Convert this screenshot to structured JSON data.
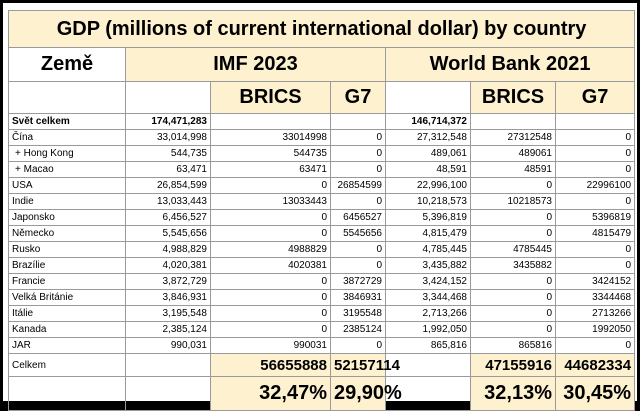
{
  "title": "GDP (millions of current international dollar) by country",
  "headers": {
    "country": "Země",
    "imf": "IMF 2023",
    "wb": "World Bank 2021",
    "brics": "BRICS",
    "g7": "G7"
  },
  "rows": [
    {
      "country": "Svět celkem",
      "imf": "174,471,283",
      "imf_brics": "",
      "imf_g7": "",
      "wb": "146,714,372",
      "wb_brics": "",
      "wb_g7": ""
    },
    {
      "country": "Čína",
      "imf": "33,014,998",
      "imf_brics": "33014998",
      "imf_g7": "0",
      "wb": "27,312,548",
      "wb_brics": "27312548",
      "wb_g7": "0"
    },
    {
      "country": "+ Hong Kong",
      "imf": "544,735",
      "imf_brics": "544735",
      "imf_g7": "0",
      "wb": "489,061",
      "wb_brics": "489061",
      "wb_g7": "0"
    },
    {
      "country": "+ Macao",
      "imf": "63,471",
      "imf_brics": "63471",
      "imf_g7": "0",
      "wb": "48,591",
      "wb_brics": "48591",
      "wb_g7": "0"
    },
    {
      "country": "USA",
      "imf": "26,854,599",
      "imf_brics": "0",
      "imf_g7": "26854599",
      "wb": "22,996,100",
      "wb_brics": "0",
      "wb_g7": "22996100"
    },
    {
      "country": "Indie",
      "imf": "13,033,443",
      "imf_brics": "13033443",
      "imf_g7": "0",
      "wb": "10,218,573",
      "wb_brics": "10218573",
      "wb_g7": "0"
    },
    {
      "country": "Japonsko",
      "imf": "6,456,527",
      "imf_brics": "0",
      "imf_g7": "6456527",
      "wb": "5,396,819",
      "wb_brics": "0",
      "wb_g7": "5396819"
    },
    {
      "country": "Německo",
      "imf": "5,545,656",
      "imf_brics": "0",
      "imf_g7": "5545656",
      "wb": "4,815,479",
      "wb_brics": "0",
      "wb_g7": "4815479"
    },
    {
      "country": "Rusko",
      "imf": "4,988,829",
      "imf_brics": "4988829",
      "imf_g7": "0",
      "wb": "4,785,445",
      "wb_brics": "4785445",
      "wb_g7": "0"
    },
    {
      "country": "Brazílie",
      "imf": "4,020,381",
      "imf_brics": "4020381",
      "imf_g7": "0",
      "wb": "3,435,882",
      "wb_brics": "3435882",
      "wb_g7": "0"
    },
    {
      "country": "Francie",
      "imf": "3,872,729",
      "imf_brics": "0",
      "imf_g7": "3872729",
      "wb": "3,424,152",
      "wb_brics": "0",
      "wb_g7": "3424152"
    },
    {
      "country": "Velká Británie",
      "imf": "3,846,931",
      "imf_brics": "0",
      "imf_g7": "3846931",
      "wb": "3,344,468",
      "wb_brics": "0",
      "wb_g7": "3344468"
    },
    {
      "country": "Itálie",
      "imf": "3,195,548",
      "imf_brics": "0",
      "imf_g7": "3195548",
      "wb": "2,713,266",
      "wb_brics": "0",
      "wb_g7": "2713266"
    },
    {
      "country": "Kanada",
      "imf": "2,385,124",
      "imf_brics": "0",
      "imf_g7": "2385124",
      "wb": "1,992,050",
      "wb_brics": "0",
      "wb_g7": "1992050"
    },
    {
      "country": "JAR",
      "imf": "990,031",
      "imf_brics": "990031",
      "imf_g7": "0",
      "wb": "865,816",
      "wb_brics": "865816",
      "wb_g7": "0"
    }
  ],
  "total": {
    "label": "Celkem",
    "imf_brics": "56655888",
    "imf_g7": "52157114",
    "wb_brics": "47155916",
    "wb_g7": "44682334"
  },
  "share": {
    "imf_brics": "32,47%",
    "imf_g7": "29,90%",
    "wb_brics": "32,13%",
    "wb_g7": "30,45%"
  }
}
